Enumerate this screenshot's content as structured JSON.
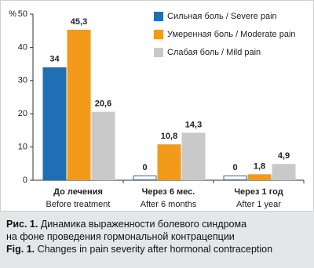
{
  "chart_data": {
    "type": "bar",
    "y_unit": "%",
    "categories": [
      [
        "До лечения",
        "Before treatment"
      ],
      [
        "Через 6 мес.",
        "After 6 months"
      ],
      [
        "Через 1 год",
        "After 1 year"
      ]
    ],
    "series": [
      {
        "name": "Сильная боль / Severe pain",
        "color": "#1f6fb5",
        "values": [
          34,
          0,
          0
        ],
        "value_labels": [
          "34",
          "0",
          "0"
        ]
      },
      {
        "name": "Умеренная боль / Moderate pain",
        "color": "#f39a1a",
        "values": [
          45.3,
          10.8,
          1.8
        ],
        "value_labels": [
          "45,3",
          "10,8",
          "1,8"
        ]
      },
      {
        "name": "Слабая боль / Mild pain",
        "color": "#c9c9c9",
        "values": [
          20.6,
          14.3,
          4.9
        ],
        "value_labels": [
          "20,6",
          "14,3",
          "4,9"
        ]
      }
    ],
    "ylim": [
      0,
      50
    ],
    "yticks": [
      0,
      10,
      20,
      30,
      40,
      50
    ],
    "grid": false,
    "legend": "top-right"
  },
  "caption": {
    "ru_label": "Рис. 1.",
    "ru_lines": [
      "Динамика выраженности болевого синдрома",
      "на фоне проведения гормональной контрацепции"
    ],
    "en_label": "Fig. 1.",
    "en_text": "Changes in pain severity after hormonal contraception"
  }
}
